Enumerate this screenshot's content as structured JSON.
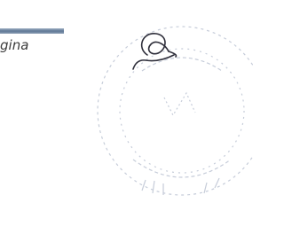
{
  "fragment": {
    "text": "gina"
  }
}
